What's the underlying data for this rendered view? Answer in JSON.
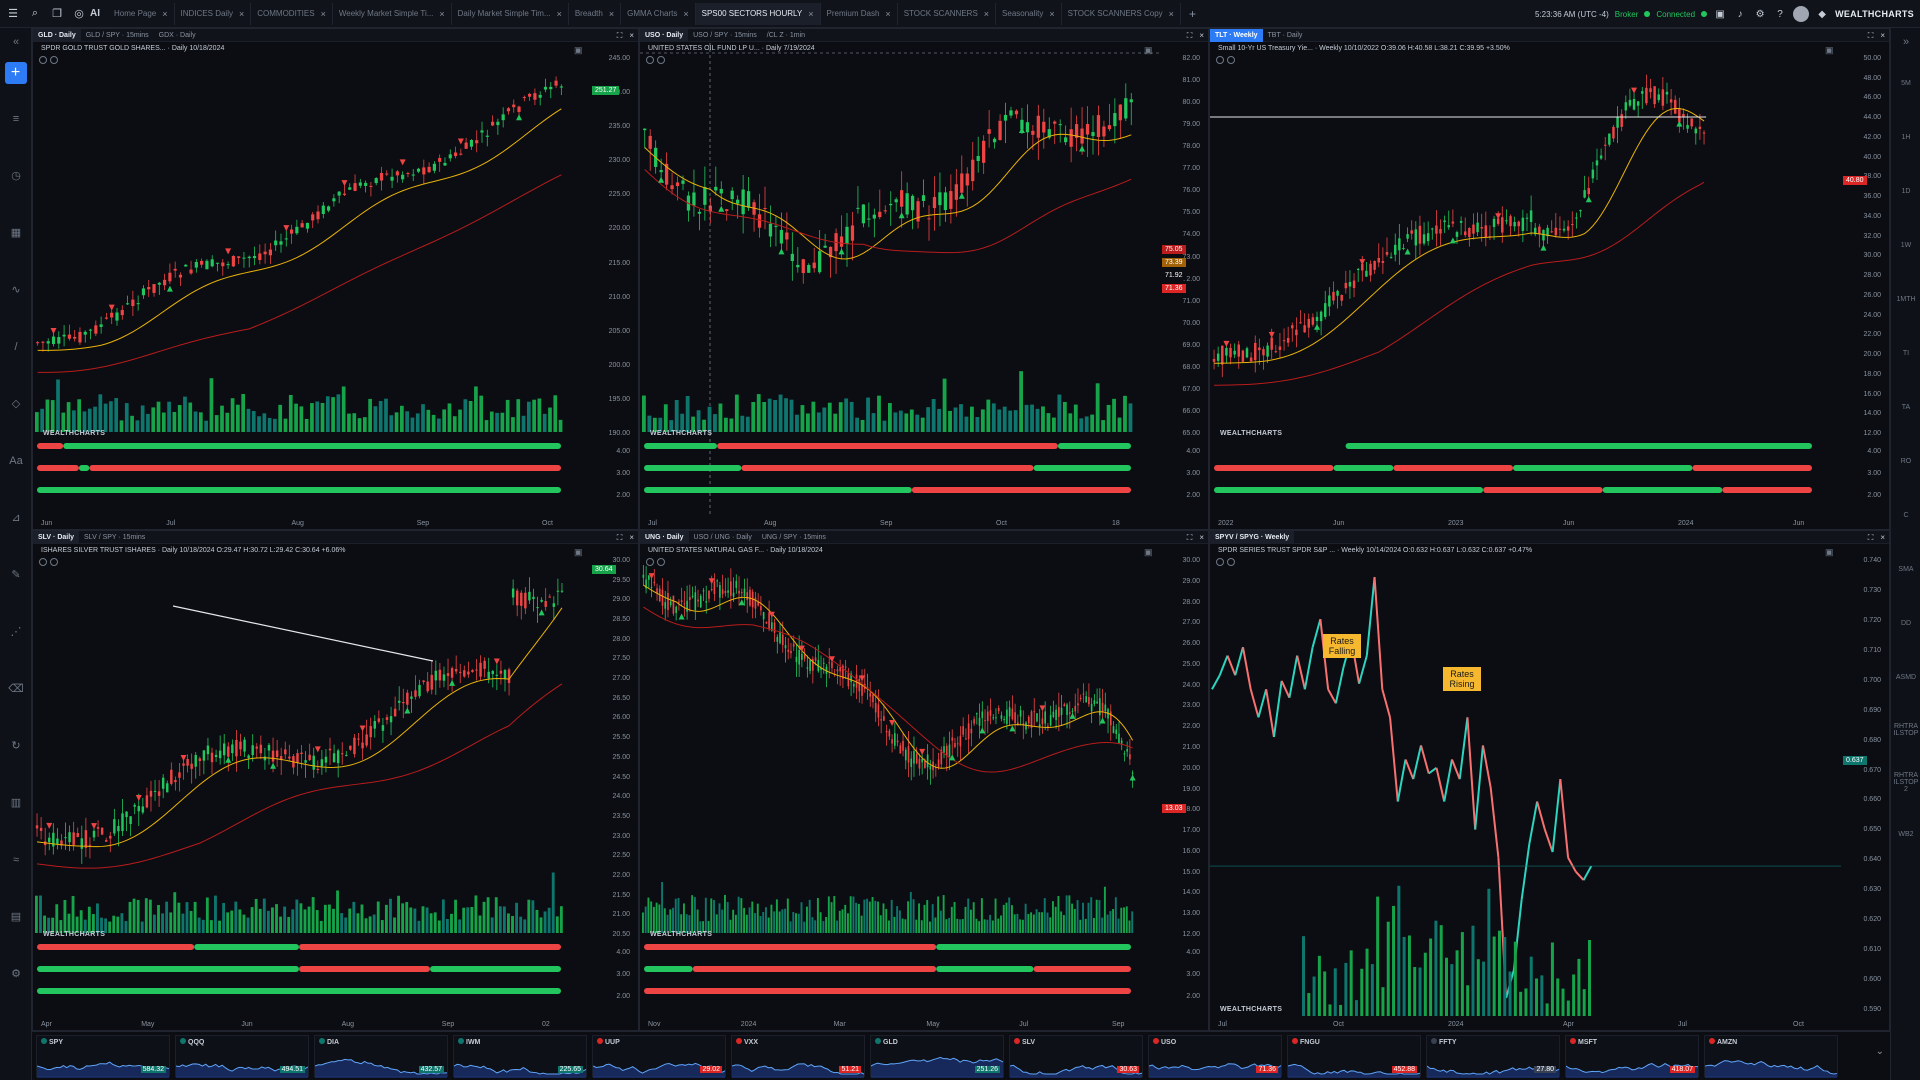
{
  "topbar": {
    "ai_label": "AI",
    "tabs": [
      {
        "label": "Home Page",
        "active": false
      },
      {
        "label": "INDICES Daily",
        "active": false
      },
      {
        "label": "COMMODITIES",
        "active": false
      },
      {
        "label": "Weekly Market Simple Ti...",
        "active": false
      },
      {
        "label": "Daily Market Simple Tim...",
        "active": false
      },
      {
        "label": "Breadth",
        "active": false
      },
      {
        "label": "GMMA Charts",
        "active": false
      },
      {
        "label": "SPS00 SECTORS HOURLY",
        "active": true
      },
      {
        "label": "Premium Dash",
        "active": false
      },
      {
        "label": "STOCK SCANNERS",
        "active": false
      },
      {
        "label": "Seasonality",
        "active": false
      },
      {
        "label": "STOCK SCANNERS Copy",
        "active": false
      }
    ],
    "close_glyph": "×",
    "add_glyph": "+",
    "time": "5:23:36 AM (UTC -4)",
    "broker": "Broker",
    "connected": "Connected",
    "brand": "WEALTHCHARTS",
    "status_color": "#22c55e"
  },
  "left_tools": [
    "chevrons-icon",
    "plus-icon",
    "bars-icon",
    "clock-icon",
    "calendar-icon",
    "trend-icon",
    "pen-icon",
    "shape-icon",
    "text-icon",
    "ruler-icon",
    "brush-icon",
    "pattern-icon",
    "eraser-icon",
    "refresh-icon",
    "chart-icon",
    "wave-icon",
    "layers-icon",
    "settings-icon"
  ],
  "right_strip": {
    "items": [
      "5M",
      "1H",
      "1D",
      "1W",
      "1MTH",
      "TI",
      "TA",
      "RO",
      "C",
      "SMA",
      "DD",
      "ASMD",
      "RHTRA ILSTOP",
      "RHTRA ILSTOP 2",
      "WB2"
    ]
  },
  "panels": [
    {
      "id": "gld",
      "tabs": [
        {
          "label": "GLD · Daily",
          "active": true
        },
        {
          "label": "GLD / SPY · 15mins",
          "active": false
        },
        {
          "label": "GDX · Daily",
          "active": false
        }
      ],
      "title": "SPDR GOLD TRUST GOLD SHARES... · Daily 10/18/2024",
      "change": "",
      "yaxis": [
        "245.00",
        "240.00",
        "235.00",
        "230.00",
        "225.00",
        "220.00",
        "215.00",
        "210.00",
        "205.00",
        "200.00",
        "195.00",
        "190.00"
      ],
      "ind_axis": [
        "4.00",
        "3.00",
        "2.00"
      ],
      "xaxis": [
        "Jun",
        "Jul",
        "Aug",
        "Sep",
        "Oct"
      ],
      "price_tags": [
        {
          "v": "251.27",
          "color": "#16a34a"
        }
      ],
      "logo": "WEALTHCHARTS"
    },
    {
      "id": "uso",
      "tabs": [
        {
          "label": "USO · Daily",
          "active": true
        },
        {
          "label": "USO / SPY · 15mins",
          "active": false
        },
        {
          "label": "/CL Z · 1min",
          "active": false
        }
      ],
      "title": "UNITED STATES OIL FUND LP U... · Daily 7/19/2024",
      "change": "",
      "yaxis": [
        "82.00",
        "81.00",
        "80.00",
        "79.00",
        "78.00",
        "77.00",
        "76.00",
        "75.00",
        "74.00",
        "73.00",
        "72.00",
        "71.00",
        "70.00",
        "69.00",
        "68.00",
        "67.00",
        "66.00",
        "65.00"
      ],
      "ind_axis": [
        "4.00",
        "3.00",
        "2.00"
      ],
      "xaxis": [
        "Jul",
        "Aug",
        "Sep",
        "Oct",
        "18"
      ],
      "price_tags": [
        {
          "v": "75.05",
          "color": "#b91c1c"
        },
        {
          "v": "73.39",
          "color": "#a16207"
        },
        {
          "v": "71.92",
          "color": "#0b0d12"
        },
        {
          "v": "71.36",
          "color": "#dc2626"
        }
      ],
      "logo": "WEALTHCHARTS"
    },
    {
      "id": "tlt",
      "tabs": [
        {
          "label": "TLT · Weekly",
          "active": true,
          "blue": true
        },
        {
          "label": "TBT · Daily",
          "active": false
        }
      ],
      "title": "Small 10-Yr US Treasury Yie... · Weekly 10/10/2022 O:39.06 H:40.58 L:38.21 C:39.95 +3.50%",
      "change": "",
      "yaxis": [
        "50.00",
        "48.00",
        "46.00",
        "44.00",
        "42.00",
        "40.00",
        "38.00",
        "36.00",
        "34.00",
        "32.00",
        "30.00",
        "28.00",
        "26.00",
        "24.00",
        "22.00",
        "20.00",
        "18.00",
        "16.00",
        "14.00",
        "12.00"
      ],
      "ind_axis": [
        "4.00",
        "3.00",
        "2.00"
      ],
      "xaxis": [
        "2022",
        "Jun",
        "2023",
        "Jun",
        "2024",
        "Jun"
      ],
      "price_tags": [
        {
          "v": "40.80",
          "color": "#dc2626"
        }
      ],
      "logo": "WEALTHCHARTS"
    },
    {
      "id": "slv",
      "tabs": [
        {
          "label": "SLV · Daily",
          "active": true
        },
        {
          "label": "SLV / SPY · 15mins",
          "active": false
        }
      ],
      "title": "ISHARES SILVER TRUST ISHARES · Daily 10/18/2024 O:29.47 H:30.72 L:29.42 C:30.64 +6.06%",
      "change": "",
      "yaxis": [
        "30.00",
        "29.50",
        "29.00",
        "28.50",
        "28.00",
        "27.50",
        "27.00",
        "26.50",
        "26.00",
        "25.50",
        "25.00",
        "24.50",
        "24.00",
        "23.50",
        "23.00",
        "22.50",
        "22.00",
        "21.50",
        "21.00",
        "20.50"
      ],
      "ind_axis": [
        "4.00",
        "3.00",
        "2.00"
      ],
      "xaxis": [
        "Apr",
        "May",
        "Jun",
        "Aug",
        "Sep",
        "02"
      ],
      "price_tags": [
        {
          "v": "30.64",
          "color": "#16a34a"
        }
      ],
      "logo": "WEALTHCHARTS"
    },
    {
      "id": "ung",
      "tabs": [
        {
          "label": "UNG · Daily",
          "active": true
        },
        {
          "label": "USO / UNG · Daily",
          "active": false
        },
        {
          "label": "UNG / SPY · 15mins",
          "active": false
        }
      ],
      "title": "UNITED STATES NATURAL GAS F... · Daily 10/18/2024",
      "change": "",
      "yaxis": [
        "30.00",
        "29.00",
        "28.00",
        "27.00",
        "26.00",
        "25.00",
        "24.00",
        "23.00",
        "22.00",
        "21.00",
        "20.00",
        "19.00",
        "18.00",
        "17.00",
        "16.00",
        "15.00",
        "14.00",
        "13.00",
        "12.00"
      ],
      "ind_axis": [
        "4.00",
        "3.00",
        "2.00"
      ],
      "xaxis": [
        "Nov",
        "2024",
        "Mar",
        "May",
        "Jul",
        "Sep"
      ],
      "price_tags": [
        {
          "v": "13.03",
          "color": "#dc2626"
        }
      ],
      "logo": "WEALTHCHARTS"
    },
    {
      "id": "spyv",
      "tabs": [
        {
          "label": "SPYV / SPYG · Weekly",
          "active": true
        }
      ],
      "title": "SPDR SERIES TRUST SPDR S&P ... · Weekly 10/14/2024 O:0.632 H:0.637 L:0.632 C:0.637 +0.47%",
      "change": "",
      "yaxis": [
        "0.740",
        "0.730",
        "0.720",
        "0.710",
        "0.700",
        "0.690",
        "0.680",
        "0.670",
        "0.660",
        "0.650",
        "0.640",
        "0.630",
        "0.620",
        "0.610",
        "0.600",
        "0.590"
      ],
      "ind_axis": [],
      "xaxis": [
        "Jul",
        "Oct",
        "2024",
        "Apr",
        "Jul",
        "Oct"
      ],
      "price_tags": [
        {
          "v": "0.637",
          "color": "#0f766e"
        }
      ],
      "logo": "WEALTHCHARTS",
      "callouts": [
        {
          "text": "Rates Falling"
        },
        {
          "text": "Rates Rising"
        }
      ]
    }
  ],
  "watchlist": [
    {
      "sym": "SPY",
      "price": "584.32",
      "color": "#0f766e"
    },
    {
      "sym": "QQQ",
      "price": "494.51",
      "color": "#0f766e"
    },
    {
      "sym": "DIA",
      "price": "432.57",
      "color": "#0f766e"
    },
    {
      "sym": "IWM",
      "price": "225.65",
      "color": "#0f766e"
    },
    {
      "sym": "UUP",
      "price": "29.02",
      "color": "#dc2626"
    },
    {
      "sym": "VXX",
      "price": "51.21",
      "color": "#dc2626"
    },
    {
      "sym": "GLD",
      "price": "251.26",
      "color": "#0f766e"
    },
    {
      "sym": "SLV",
      "price": "30.63",
      "color": "#dc2626"
    },
    {
      "sym": "USO",
      "price": "71.36",
      "color": "#dc2626"
    },
    {
      "sym": "FNGU",
      "price": "452.88",
      "color": "#dc2626"
    },
    {
      "sym": "FFTY",
      "price": "27.80",
      "color": "#374151"
    },
    {
      "sym": "MSFT",
      "price": "418.07",
      "color": "#dc2626"
    },
    {
      "sym": "AMZN",
      "price": "",
      "color": "#dc2626"
    }
  ]
}
